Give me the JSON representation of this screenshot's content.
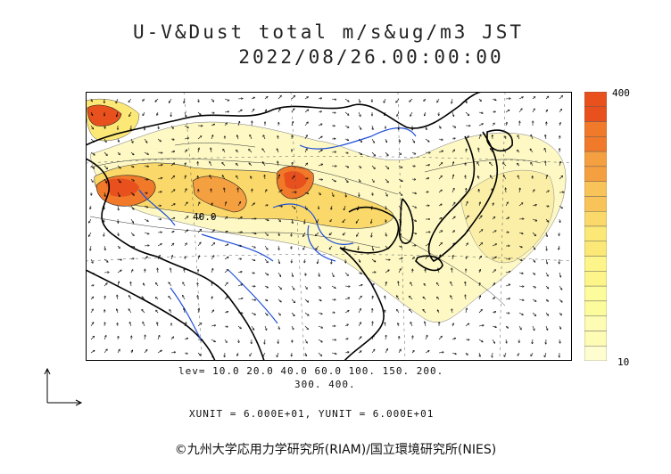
{
  "title": "U-V&Dust total m/s&ug/m3 JST",
  "datetime": "2022/08/26.00:00:00",
  "colorbar": {
    "max_label": "400",
    "min_label": "10",
    "colors": [
      "#e8501e",
      "#f07a2a",
      "#f5a040",
      "#f8c45a",
      "#fad96a",
      "#fbe877",
      "#fdf58a",
      "#fdfc9c",
      "#fefbb5",
      "#fefdd0"
    ]
  },
  "levels_line1": "lev= 10.0 20.0 40.0 60.0 100. 150. 200.",
  "levels_line2": "300. 400.",
  "contour_label": "40.0",
  "units": "XUNIT = 6.000E+01, YUNIT = 6.000E+01",
  "credit": "©九州大学応用力学研究所(RIAM)/国立環境研究所(NIES)",
  "colors": {
    "coast": "#000000",
    "river": "#1f4fd8",
    "dust_high": "#e8501e",
    "dust_low": "#fdf8c4"
  }
}
